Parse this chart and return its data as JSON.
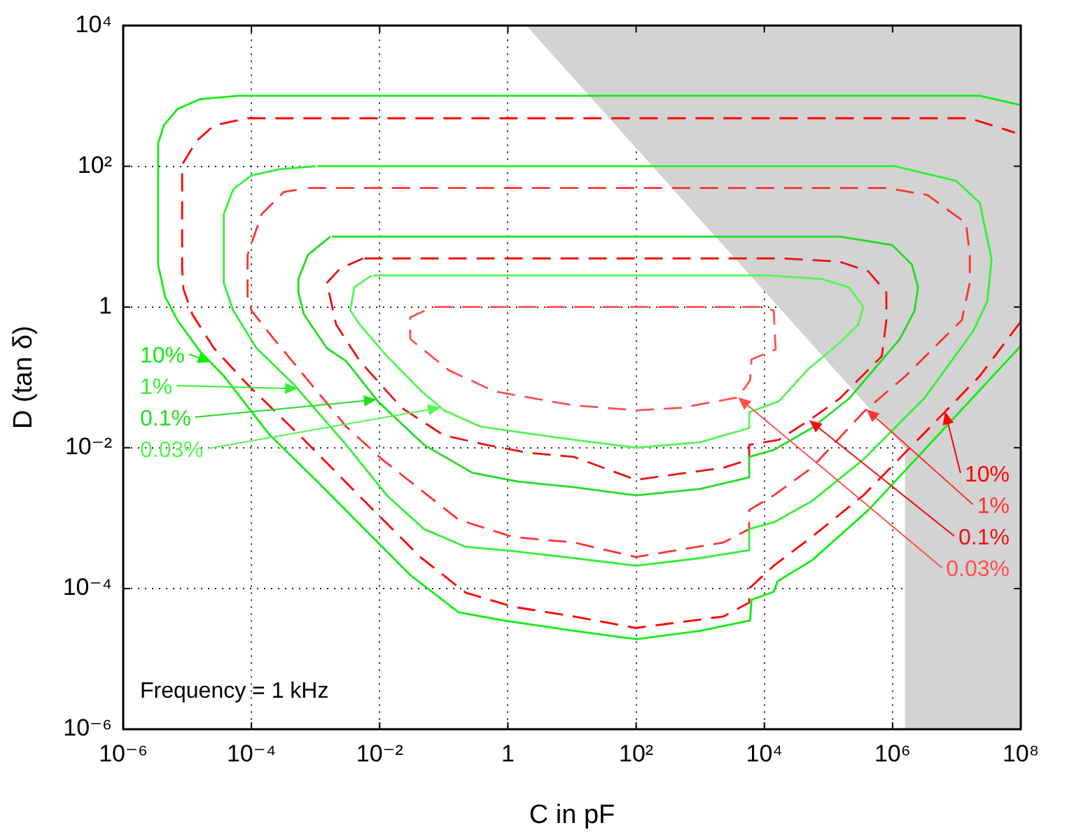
{
  "chart_data": {
    "type": "line",
    "xlabel": "C in pF",
    "ylabel": "D (tan δ)",
    "log": "xy",
    "grid": true,
    "marker": "none",
    "xlim": [
      1e-06,
      100000000.0
    ],
    "ylim": [
      1e-06,
      10000.0
    ],
    "xticks": [
      {
        "value": 1e-06,
        "label": "10⁻⁶"
      },
      {
        "value": 0.0001,
        "label": "10⁻⁴"
      },
      {
        "value": 0.01,
        "label": "10⁻²"
      },
      1,
      {
        "value": 100,
        "label": "10²"
      },
      {
        "value": 10000.0,
        "label": "10⁴"
      },
      {
        "value": 1000000.0,
        "label": "10⁶"
      },
      {
        "value": 100000000.0,
        "label": "10⁸"
      }
    ],
    "yticks": [
      {
        "value": 1e-06,
        "label": "10⁻⁶"
      },
      {
        "value": 0.0001,
        "label": "10⁻⁴"
      },
      {
        "value": 0.01,
        "label": "10⁻²"
      },
      1,
      {
        "value": 100,
        "label": "10²"
      },
      {
        "value": 10000.0,
        "label": "10⁴"
      }
    ],
    "annotations": [
      "Frequency = 1 kHz"
    ],
    "series": [
      {
        "type": "area",
        "color": "#d3d3d3",
        "x": [
          2,
          1600000.0,
          1600000.0,
          100000000.0,
          100000000.0,
          2
        ],
        "values": [
          10000.0,
          0.01,
          1e-06,
          1e-06,
          10000.0,
          10000.0
        ]
      },
      {
        "name": "10%",
        "color": "#11ee11",
        "line_style": "solid",
        "x": [
          100000000.0,
          4400000.0,
          420000.0,
          55000.0,
          16000.0,
          14000.0,
          6300.0,
          6000.0,
          1000,
          100,
          10.7,
          0.87,
          0.17,
          0.03,
          0.0058,
          0.00107,
          0.000195,
          3.7e-05,
          1.6e-05,
          7e-06,
          4.5e-06,
          3.5e-06,
          3.5e-06,
          4.3e-06,
          7e-06,
          1.6e-05,
          6.2e-05,
          23000000.0,
          100000000.0
        ],
        "values": [
          0.28,
          0.013,
          0.0013,
          0.00025,
          0.000126,
          9e-05,
          6.9e-05,
          3.5e-05,
          2.5e-05,
          1.9e-05,
          2.5e-05,
          3.5e-05,
          4.6e-05,
          0.000155,
          0.0007,
          0.0033,
          0.015,
          0.105,
          0.23,
          0.65,
          1.4,
          4,
          210,
          380,
          650,
          900,
          1000,
          1000,
          740
        ]
      },
      {
        "name": "10%",
        "color": "#ff0000",
        "line_style": "dashed",
        "x": [
          100000000.0,
          23000000.0,
          3100000.0,
          350000.0,
          55000.0,
          14000.0,
          5800.0,
          5800.0,
          2300.0,
          100,
          10.7,
          1.2,
          0.22,
          0.043,
          0.0058,
          0.00066,
          8.7e-05,
          2.6e-05,
          1.2e-05,
          8.7e-06,
          8.3e-06,
          8.3e-06,
          1.4e-05,
          2.6e-05,
          8.7e-05,
          16000000.0,
          81000000.0
        ],
        "values": [
          0.62,
          0.105,
          0.016,
          0.0021,
          0.00054,
          0.00021,
          0.0001,
          6.3e-05,
          4e-05,
          2.75e-05,
          4e-05,
          5.5e-05,
          8.7e-05,
          0.00028,
          0.00174,
          0.013,
          0.079,
          0.26,
          0.78,
          1.8,
          3.5,
          105,
          230,
          380,
          480,
          480,
          300
        ]
      },
      {
        "name": "1%",
        "color": "#33f033",
        "line_style": "solid",
        "x": [
          0.00107,
          1100000.0,
          9800000.0,
          23000000.0,
          35000000.0,
          30000000.0,
          18000000.0,
          3100000.0,
          350000.0,
          55000.0,
          14000.0,
          5800.0,
          5800.0,
          1000,
          100,
          10.7,
          1.2,
          0.22,
          0.049,
          0.013,
          0.003,
          0.00046,
          0.00012,
          5.2e-05,
          3.7e-05,
          3.7e-05,
          5.2e-05,
          0.0001,
          0.00028,
          0.001
        ],
        "values": [
          100,
          100,
          62,
          30,
          4.8,
          1.2,
          0.45,
          0.05,
          0.0068,
          0.00174,
          0.00087,
          0.0007,
          0.00035,
          0.00027,
          0.00021,
          0.00027,
          0.00034,
          0.00039,
          0.0007,
          0.0021,
          0.011,
          0.079,
          0.26,
          0.89,
          2.2,
          21,
          47,
          74,
          91,
          100
        ]
      },
      {
        "name": "1%",
        "color": "#ff3333",
        "line_style": "dashed",
        "x": [
          0.00076,
          800000.0,
          3500000.0,
          14000000.0,
          16000000.0,
          16000000.0,
          12000000.0,
          1600000.0,
          350000.0,
          55000.0,
          14000.0,
          5800.0,
          5800.0,
          2300.0,
          100,
          10.7,
          1.2,
          0.17,
          0.011,
          0.003,
          0.00076,
          0.000195,
          0.0001,
          8.7e-05,
          8.7e-05,
          0.000145,
          0.00032,
          0.00072
        ],
        "values": [
          49,
          49,
          39,
          15.5,
          5.5,
          2.2,
          0.65,
          0.105,
          0.032,
          0.0052,
          0.0021,
          0.0013,
          0.0007,
          0.00045,
          0.00028,
          0.00045,
          0.00054,
          0.00095,
          0.0068,
          0.02,
          0.091,
          0.41,
          0.89,
          1.4,
          5.5,
          21,
          43,
          49
        ]
      },
      {
        "name": "0.1%",
        "color": "#22dd22",
        "line_style": "solid",
        "x": [
          0.0018,
          150000.0,
          980000.0,
          2000000.0,
          2500000.0,
          2200000.0,
          1300000.0,
          210000.0,
          55000.0,
          14000.0,
          5800.0,
          5800.0,
          1000,
          100,
          10.7,
          1.45,
          0.28,
          0.049,
          0.0093,
          0.003,
          0.0015,
          0.00066,
          0.00054,
          0.00054,
          0.00076,
          0.0017
        ],
        "values": [
          10,
          10,
          7.6,
          4,
          1.9,
          0.89,
          0.35,
          0.05,
          0.019,
          0.0093,
          0.0074,
          0.0038,
          0.0026,
          0.0021,
          0.00275,
          0.0033,
          0.0044,
          0.011,
          0.046,
          0.17,
          0.26,
          0.78,
          1.6,
          2.5,
          5.5,
          10
        ]
      },
      {
        "name": "0.1%",
        "color": "#ee1111",
        "line_style": "dashed",
        "x": [
          0.0058,
          20000.0,
          150000.0,
          420000.0,
          800000.0,
          800000.0,
          680000.0,
          150000.0,
          55000.0,
          17000.0,
          5800.0,
          5800.0,
          2300.0,
          100,
          10.7,
          2,
          0.46,
          0.1,
          0.022,
          0.0049,
          0.0021,
          0.0015,
          0.0024,
          0.0055
        ],
        "values": [
          4.9,
          4.9,
          4.4,
          3.2,
          1.6,
          0.65,
          0.2,
          0.05,
          0.026,
          0.013,
          0.011,
          0.0068,
          0.0052,
          0.0035,
          0.0074,
          0.0085,
          0.011,
          0.015,
          0.037,
          0.17,
          0.56,
          2.2,
          3.5,
          4.9
        ]
      },
      {
        "name": "0.03%",
        "color": "#55f555",
        "line_style": "solid",
        "x": [
          0.0079,
          12000.0,
          79000.0,
          210000.0,
          350000.0,
          290000.0,
          150000.0,
          48000.0,
          17000.0,
          5800.0,
          5800.0,
          1000,
          100,
          10.7,
          2,
          0.37,
          0.1,
          0.043,
          0.013,
          0.0049,
          0.0035,
          0.004,
          0.0075
        ],
        "values": [
          2.8,
          2.8,
          2.5,
          1.9,
          1,
          0.56,
          0.31,
          0.13,
          0.046,
          0.032,
          0.019,
          0.012,
          0.01,
          0.013,
          0.016,
          0.02,
          0.034,
          0.066,
          0.2,
          0.56,
          0.89,
          1.9,
          2.8
        ]
      },
      {
        "name": "0.03%",
        "color": "#ff5050",
        "line_style": "dashed",
        "x": [
          0.071,
          9500.0,
          14000.0,
          15000.0,
          6300.0,
          6000.0,
          3900.0,
          510,
          100,
          10.7,
          0.62,
          0.12,
          0.03,
          0.03,
          0.067
        ],
        "values": [
          1,
          1,
          0.89,
          0.25,
          0.18,
          0.091,
          0.052,
          0.037,
          0.034,
          0.04,
          0.063,
          0.126,
          0.35,
          0.71,
          1
        ]
      }
    ]
  }
}
